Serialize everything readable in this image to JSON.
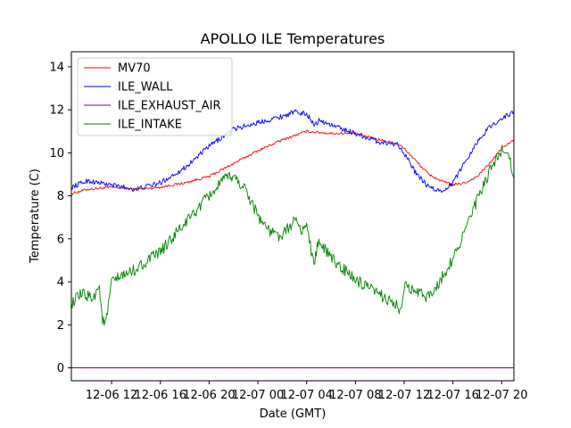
{
  "chart_data": {
    "type": "line",
    "title": "APOLLO ILE Temperatures",
    "xlabel": "Date (GMT)",
    "ylabel": "Temperature (C)",
    "xlim_hours": [
      8.7,
      45.0
    ],
    "ylim": [
      -0.6,
      14.7
    ],
    "y_ticks": [
      0,
      2,
      4,
      6,
      8,
      10,
      12,
      14
    ],
    "x_ticks": [
      {
        "label": "12-06 12",
        "hour": 12
      },
      {
        "label": "12-06 16",
        "hour": 16
      },
      {
        "label": "12-06 20",
        "hour": 20
      },
      {
        "label": "12-07 00",
        "hour": 24
      },
      {
        "label": "12-07 04",
        "hour": 28
      },
      {
        "label": "12-07 08",
        "hour": 32
      },
      {
        "label": "12-07 12",
        "hour": 36
      },
      {
        "label": "12-07 16",
        "hour": 40
      },
      {
        "label": "12-07 20",
        "hour": 44
      }
    ],
    "legend_position": "top-left",
    "grid": false,
    "series": [
      {
        "name": "MV70",
        "color": "#ff0000",
        "x": [
          8.7,
          10,
          12,
          14,
          16,
          18,
          20,
          22,
          24,
          26,
          28,
          30,
          32,
          34,
          35.5,
          36,
          37,
          38,
          39,
          40,
          41,
          42,
          43,
          44,
          45
        ],
        "y": [
          8.1,
          8.3,
          8.4,
          8.3,
          8.4,
          8.6,
          8.9,
          9.5,
          10.1,
          10.6,
          11.0,
          10.9,
          10.9,
          10.6,
          10.4,
          10.2,
          9.6,
          9.0,
          8.7,
          8.5,
          8.6,
          8.9,
          9.5,
          10.2,
          10.6
        ]
      },
      {
        "name": "ILE_WALL",
        "color": "#0000ff",
        "x": [
          8.7,
          10,
          11,
          12,
          14,
          16,
          18,
          20,
          22,
          24,
          26,
          27,
          28,
          28.7,
          29,
          30,
          31,
          32,
          34,
          35.5,
          36,
          37,
          38,
          39,
          40,
          41,
          42,
          43,
          44,
          45
        ],
        "y": [
          8.4,
          8.7,
          8.6,
          8.5,
          8.3,
          8.6,
          9.3,
          10.3,
          11.1,
          11.4,
          11.7,
          11.9,
          11.8,
          11.3,
          11.5,
          11.3,
          11.1,
          10.9,
          10.5,
          10.4,
          10.0,
          9.0,
          8.4,
          8.2,
          8.6,
          9.6,
          10.5,
          11.2,
          11.6,
          11.9
        ]
      },
      {
        "name": "ILE_EXHAUST_AIR",
        "color": "#800080",
        "x": [
          8.7,
          45
        ],
        "y": [
          0,
          0
        ]
      },
      {
        "name": "ILE_INTAKE",
        "color": "#008000",
        "x": [
          8.7,
          9.5,
          10.5,
          11,
          11.2,
          11.4,
          11.6,
          12,
          14,
          16,
          18,
          20,
          21,
          21.6,
          22,
          23,
          24,
          25,
          26,
          27,
          27.5,
          28,
          28.6,
          29,
          29.5,
          30,
          31,
          32,
          33,
          34,
          35,
          35.8,
          36,
          37,
          38,
          39,
          40,
          41,
          42,
          43,
          44,
          44.5,
          45
        ],
        "y": [
          3.0,
          3.4,
          3.3,
          3.8,
          2.4,
          2.0,
          2.3,
          4.0,
          4.6,
          5.4,
          6.7,
          8.0,
          8.6,
          8.9,
          8.9,
          8.3,
          7.1,
          6.3,
          6.1,
          6.9,
          6.4,
          6.6,
          4.8,
          6.0,
          5.5,
          5.1,
          4.6,
          4.1,
          3.7,
          3.4,
          3.1,
          2.6,
          3.8,
          3.5,
          3.3,
          4.1,
          5.1,
          6.4,
          7.8,
          9.1,
          10.1,
          10.2,
          8.8
        ]
      }
    ]
  }
}
